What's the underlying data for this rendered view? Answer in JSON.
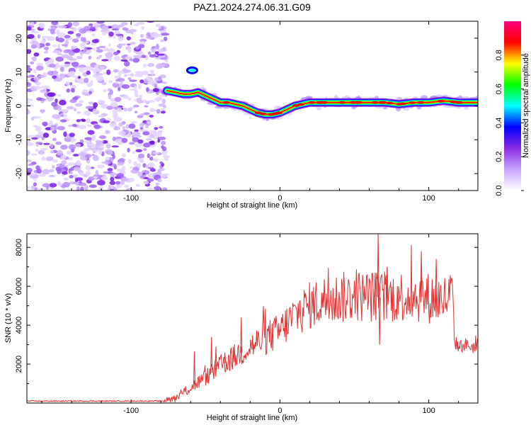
{
  "title": "PAZ1.2024.274.06.31.G09",
  "chart_data": [
    {
      "type": "heatmap",
      "xlabel": "Height of straight line (km)",
      "ylabel": "Frequency (Hz)",
      "xlim": [
        -170,
        133
      ],
      "ylim": [
        -25,
        25
      ],
      "xticks": [
        -100,
        0,
        100
      ],
      "yticks": [
        -20,
        -10,
        0,
        10,
        20
      ],
      "xtick_labels": [
        "-100",
        "0",
        "100"
      ],
      "ytick_labels": [
        "-20",
        "-10",
        "0",
        "10",
        "20"
      ],
      "colorbar": {
        "label": "Normalized spectral amplitude",
        "range": [
          0,
          1
        ],
        "ticks": [
          "0.0",
          "0.2",
          "0.4",
          "0.6",
          "0.8"
        ],
        "tick_values": [
          0.0,
          0.2,
          0.4,
          0.6,
          0.8
        ],
        "colormap": "rainbow",
        "colors": [
          "#ffffff",
          "#c9a5ff",
          "#8a2be2",
          "#0000ff",
          "#00ffff",
          "#00ff00",
          "#ffff00",
          "#ff0000",
          "#ff0080"
        ]
      },
      "noise_region_x": [
        -170,
        -76
      ],
      "peak_frequency_track": {
        "x": [
          -76,
          -70,
          -65,
          -60,
          -55,
          -50,
          -45,
          -40,
          -35,
          -30,
          -25,
          -20,
          -15,
          -10,
          -5,
          0,
          5,
          10,
          15,
          20,
          30,
          40,
          50,
          60,
          70,
          80,
          90,
          100,
          110,
          120,
          133
        ],
        "y": [
          4.5,
          4,
          3.5,
          3.5,
          4,
          3,
          2,
          1,
          1,
          0.5,
          0,
          -1,
          -2,
          -2.5,
          -2.5,
          -2,
          -1,
          0,
          0.5,
          1,
          1,
          1,
          1,
          1,
          1,
          0.5,
          1,
          1,
          1.5,
          1,
          1
        ]
      }
    },
    {
      "type": "line",
      "xlabel": "Height of straight line (km)",
      "ylabel": "SNR (10 * v/v)",
      "xlim": [
        -170,
        133
      ],
      "ylim": [
        0,
        8700
      ],
      "xticks": [
        -100,
        0,
        100
      ],
      "yticks": [
        2000,
        4000,
        6000,
        8000
      ],
      "xtick_labels": [
        "-100",
        "0",
        "100"
      ],
      "ytick_labels": [
        "2000",
        "4000",
        "6000",
        "8000"
      ],
      "color": "#e53030",
      "envelope": {
        "x": [
          -170,
          -80,
          -75,
          -70,
          -60,
          -50,
          -40,
          -30,
          -20,
          -10,
          0,
          10,
          20,
          30,
          40,
          50,
          60,
          70,
          80,
          90,
          100,
          110,
          116,
          117,
          120,
          125,
          133
        ],
        "y": [
          100,
          100,
          150,
          250,
          800,
          1300,
          1900,
          2400,
          2900,
          3300,
          3700,
          4500,
          5000,
          5300,
          5400,
          5500,
          5500,
          5400,
          5500,
          5500,
          5400,
          5300,
          5600,
          3200,
          2900,
          3000,
          2800
        ]
      },
      "spikes": [
        {
          "x": -57.5,
          "y": 2650
        },
        {
          "x": -46,
          "y": 3400
        },
        {
          "x": -43,
          "y": 2900
        },
        {
          "x": -37,
          "y": 2600
        },
        {
          "x": -26,
          "y": 4400
        },
        {
          "x": 64,
          "y": 6700
        },
        {
          "x": 66,
          "y": 8700
        },
        {
          "x": 67,
          "y": 3000
        },
        {
          "x": 72,
          "y": 7000
        },
        {
          "x": 95,
          "y": 7800
        },
        {
          "x": 105,
          "y": 7400
        }
      ]
    }
  ]
}
